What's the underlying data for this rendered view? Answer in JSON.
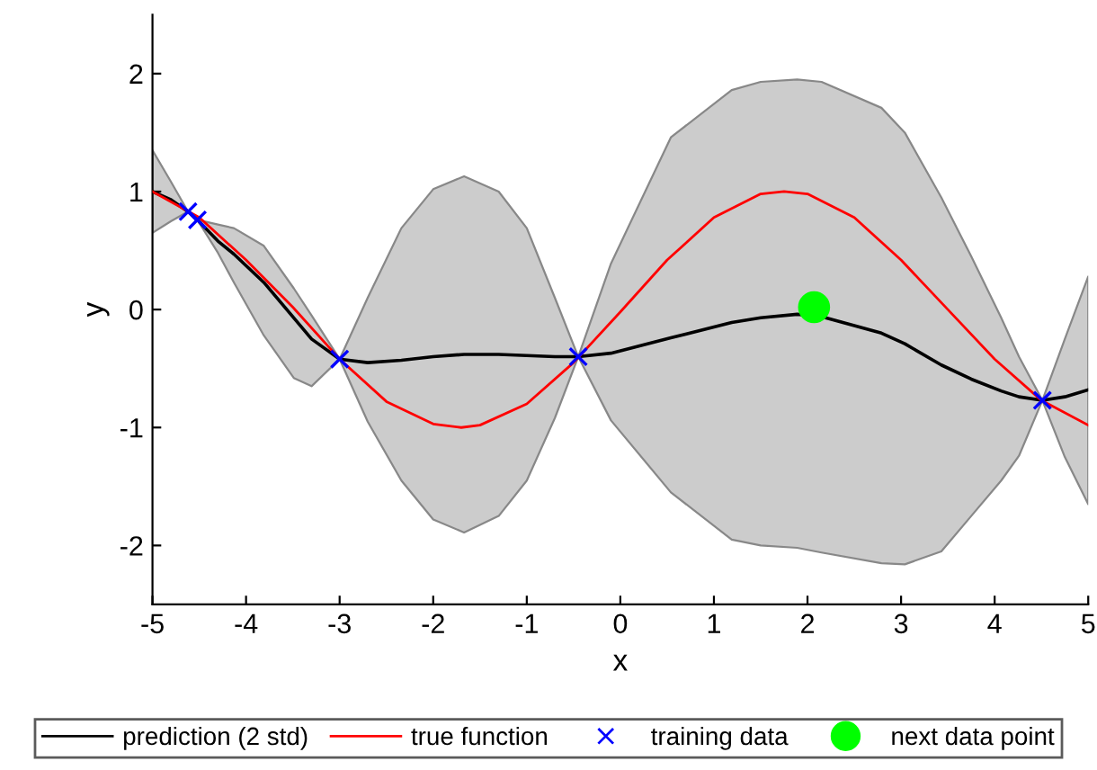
{
  "chart_data": {
    "type": "line",
    "xlabel": "x",
    "ylabel": "y",
    "xlim": [
      -5,
      5
    ],
    "ylim": [
      -2.5,
      2.5
    ],
    "xticks": [
      -5,
      -4,
      -3,
      -2,
      -1,
      0,
      1,
      2,
      3,
      4,
      5
    ],
    "yticks": [
      -2,
      -1,
      0,
      1,
      2
    ],
    "grid": false,
    "legend": "bottom",
    "series": [
      {
        "name": "prediction (2 std)",
        "color": "#000000",
        "x": [
          -5,
          -4.8,
          -4.62,
          -4.52,
          -4.3,
          -4.13,
          -3.81,
          -3.49,
          -3.3,
          -3,
          -2.7,
          -2.34,
          -2,
          -1.67,
          -1.3,
          -1,
          -0.7,
          -0.45,
          -0.1,
          0.54,
          1.19,
          1.5,
          1.89,
          2.15,
          2.79,
          3.04,
          3.43,
          3.75,
          4.07,
          4.26,
          4.51,
          4.75,
          5
        ],
        "values": [
          1.0,
          0.93,
          0.83,
          0.76,
          0.58,
          0.47,
          0.23,
          -0.07,
          -0.25,
          -0.42,
          -0.45,
          -0.43,
          -0.4,
          -0.38,
          -0.38,
          -0.39,
          -0.4,
          -0.4,
          -0.37,
          -0.24,
          -0.11,
          -0.07,
          -0.04,
          -0.06,
          -0.2,
          -0.29,
          -0.47,
          -0.59,
          -0.69,
          -0.74,
          -0.77,
          -0.74,
          -0.68
        ],
        "upper": [
          1.35,
          1.08,
          0.83,
          0.76,
          0.72,
          0.69,
          0.54,
          0.18,
          -0.05,
          -0.42,
          0.1,
          0.69,
          1.02,
          1.13,
          1.0,
          0.69,
          0.1,
          -0.4,
          0.39,
          1.46,
          1.86,
          1.93,
          1.95,
          1.93,
          1.71,
          1.5,
          0.95,
          0.45,
          -0.07,
          -0.4,
          -0.77,
          -0.25,
          0.28
        ],
        "lower": [
          0.65,
          0.75,
          0.83,
          0.76,
          0.48,
          0.23,
          -0.22,
          -0.58,
          -0.65,
          -0.42,
          -0.95,
          -1.45,
          -1.78,
          -1.89,
          -1.75,
          -1.45,
          -0.92,
          -0.4,
          -0.94,
          -1.55,
          -1.95,
          -2.0,
          -2.02,
          -2.06,
          -2.15,
          -2.16,
          -2.05,
          -1.75,
          -1.45,
          -1.24,
          -0.77,
          -1.25,
          -1.65
        ]
      },
      {
        "name": "true function",
        "color": "#ff0000",
        "x": [
          -5,
          -4.5,
          -4,
          -3.5,
          -3,
          -2.5,
          -2,
          -1.7,
          -1.5,
          -1,
          -0.5,
          0,
          0.5,
          1,
          1.5,
          1.75,
          2,
          2.5,
          3,
          3.5,
          4,
          4.5,
          5
        ],
        "values": [
          1.0,
          0.78,
          0.42,
          0.02,
          -0.42,
          -0.78,
          -0.97,
          -1.0,
          -0.98,
          -0.8,
          -0.45,
          -0.02,
          0.42,
          0.78,
          0.98,
          1.0,
          0.98,
          0.78,
          0.42,
          0.0,
          -0.42,
          -0.77,
          -0.98
        ]
      },
      {
        "name": "training data",
        "type": "scatter",
        "marker": "cross",
        "color": "#0000ff",
        "x": [
          -4.62,
          -4.52,
          -3.0,
          -0.45,
          4.51
        ],
        "values": [
          0.83,
          0.76,
          -0.42,
          -0.4,
          -0.77
        ]
      },
      {
        "name": "next data point",
        "type": "scatter",
        "marker": "circle",
        "color": "#00ff00",
        "x": [
          2.07
        ],
        "values": [
          0.02
        ]
      }
    ]
  }
}
